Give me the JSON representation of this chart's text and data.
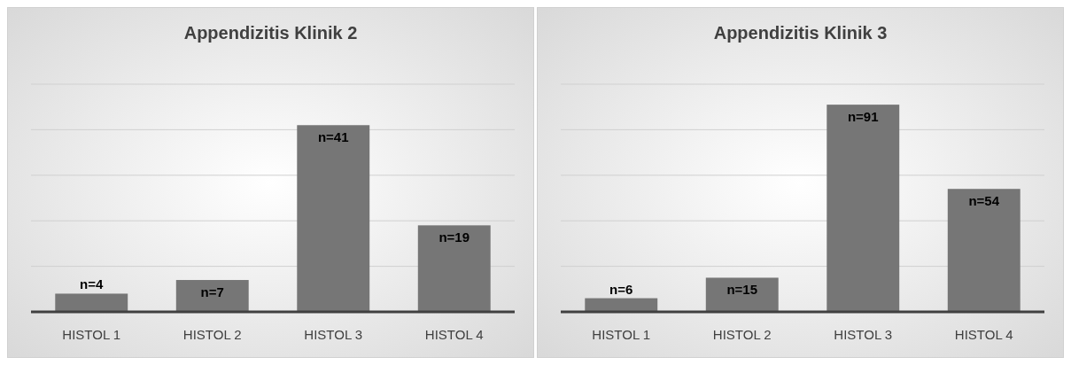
{
  "chart_data": [
    {
      "type": "bar",
      "title": "Appendizitis Klinik 2",
      "categories": [
        "HISTOL 1",
        "HISTOL 2",
        "HISTOL 3",
        "HISTOL 4"
      ],
      "values": [
        4,
        7,
        41,
        19
      ],
      "value_labels": [
        "n=4",
        "n=7",
        "n=41",
        "n=19"
      ],
      "color": "#767676",
      "ylim": [
        0,
        50
      ],
      "yticks": [
        {
          "value": 0,
          "label": null
        },
        {
          "value": 10,
          "label": null
        },
        {
          "value": 20,
          "label": null
        },
        {
          "value": 30,
          "label": null
        },
        {
          "value": 40,
          "label": null
        },
        {
          "value": 50,
          "label": null
        }
      ],
      "grid": "y",
      "tick_labels": "x"
    },
    {
      "type": "bar",
      "title": "Appendizitis Klinik 3",
      "categories": [
        "HISTOL 1",
        "HISTOL 2",
        "HISTOL 3",
        "HISTOL 4"
      ],
      "values": [
        6,
        15,
        91,
        54
      ],
      "value_labels": [
        "n=6",
        "n=15",
        "n=91",
        "n=54"
      ],
      "color": "#767676",
      "ylim": [
        0,
        100
      ],
      "yticks": [
        {
          "value": 0,
          "label": null
        },
        {
          "value": 20,
          "label": null
        },
        {
          "value": 40,
          "label": null
        },
        {
          "value": 60,
          "label": null
        },
        {
          "value": 80,
          "label": null
        },
        {
          "value": 100,
          "label": null
        }
      ],
      "grid": "y",
      "tick_labels": "x"
    }
  ]
}
